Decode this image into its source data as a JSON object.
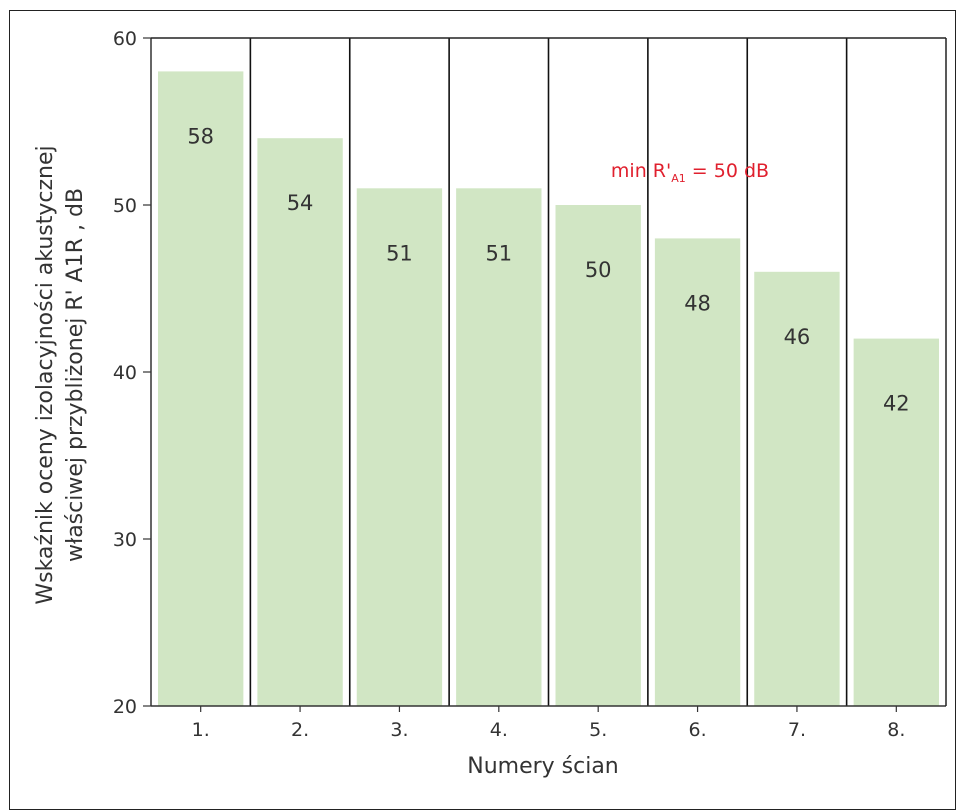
{
  "chart_data": {
    "type": "bar",
    "categories": [
      "1.",
      "2.",
      "3.",
      "4.",
      "5.",
      "6.",
      "7.",
      "8."
    ],
    "values": [
      58,
      54,
      51,
      51,
      50,
      48,
      46,
      42
    ],
    "xlabel": "Numery ścian",
    "ylabel_line1": "Wskaźnik oceny izolacyjności akustycznej",
    "ylabel_line2": "właściwej przybliżonej R' A1R , dB",
    "ylim": [
      20,
      60
    ],
    "yticks": [
      20,
      30,
      40,
      50,
      60
    ],
    "grid": false,
    "bar_color": "#d1e6c4",
    "annotation": {
      "prefix": "min R'",
      "subscript": "A1",
      "suffix": " = 50 dB",
      "color": "#e0202e"
    }
  }
}
